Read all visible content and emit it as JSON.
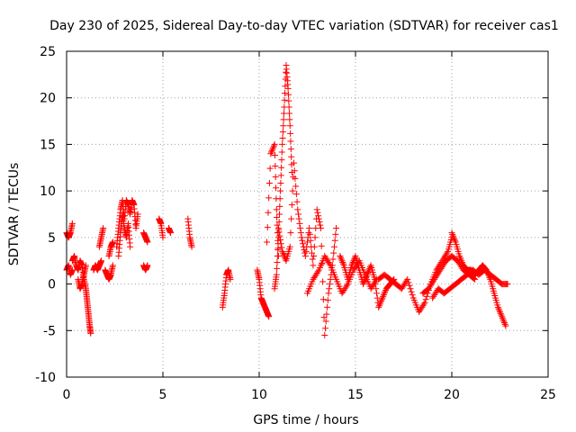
{
  "chart_data": {
    "type": "scatter",
    "title": "Day 230 of 2025, Sidereal Day-to-day VTEC variation (SDTVAR) for receiver cas1",
    "xlabel": "GPS time / hours",
    "ylabel": "SDTVAR / TECUs",
    "xlim": [
      0,
      25
    ],
    "ylim": [
      -10,
      25
    ],
    "x_ticks": [
      0,
      5,
      10,
      15,
      20,
      25
    ],
    "y_ticks": [
      -10,
      -5,
      0,
      5,
      10,
      15,
      20,
      25
    ],
    "grid": true,
    "legend": "none",
    "marker": "+",
    "series": [
      {
        "name": "SDTVAR",
        "color": "#ff0000",
        "segments": [
          {
            "t": [
              0.0,
              0.1,
              0.2,
              0.3
            ],
            "v": [
              5.5,
              5.0,
              5.5,
              6.5
            ]
          },
          {
            "t": [
              0.0,
              0.1,
              0.2,
              0.3
            ],
            "v": [
              1.5,
              2.0,
              1.0,
              1.5
            ]
          },
          {
            "t": [
              0.3,
              0.4,
              0.5,
              0.6,
              0.7,
              0.8,
              0.9,
              1.0,
              1.05,
              1.1,
              1.15,
              1.2,
              1.25
            ],
            "v": [
              2.5,
              3.0,
              2.0,
              1.5,
              2.5,
              2.0,
              0.5,
              -0.5,
              -1.5,
              -2.5,
              -3.5,
              -4.5,
              -5.3
            ]
          },
          {
            "t": [
              0.6,
              0.7,
              0.8,
              0.9,
              1.0
            ],
            "v": [
              0.5,
              -0.5,
              0.0,
              1.0,
              2.0
            ]
          },
          {
            "t": [
              1.4,
              1.5,
              1.6,
              1.7,
              1.8
            ],
            "v": [
              1.5,
              2.0,
              1.5,
              2.0,
              2.5
            ]
          },
          {
            "t": [
              1.7,
              1.8,
              1.9
            ],
            "v": [
              4.0,
              5.0,
              6.0
            ]
          },
          {
            "t": [
              2.0,
              2.1,
              2.2,
              2.3,
              2.4
            ],
            "v": [
              1.5,
              1.0,
              0.5,
              1.0,
              2.0
            ]
          },
          {
            "t": [
              2.2,
              2.3,
              2.4
            ],
            "v": [
              3.0,
              4.0,
              4.5
            ]
          },
          {
            "t": [
              2.6,
              2.7,
              2.8,
              2.9,
              3.0,
              3.1,
              3.2,
              3.3,
              3.4,
              3.5,
              3.6,
              3.7
            ],
            "v": [
              4.0,
              6.0,
              8.0,
              9.0,
              7.0,
              9.0,
              8.5,
              7.5,
              9.0,
              8.5,
              6.0,
              7.5
            ]
          },
          {
            "t": [
              2.7,
              2.8,
              2.9,
              3.0,
              3.1,
              3.2,
              3.3
            ],
            "v": [
              3.0,
              5.5,
              7.5,
              6.0,
              5.0,
              6.5,
              4.0
            ]
          },
          {
            "t": [
              4.0,
              4.1,
              4.2
            ],
            "v": [
              5.5,
              5.0,
              4.5
            ]
          },
          {
            "t": [
              4.0,
              4.1,
              4.2
            ],
            "v": [
              2.0,
              1.5,
              2.0
            ]
          },
          {
            "t": [
              4.8,
              4.9,
              5.0
            ],
            "v": [
              7.0,
              6.5,
              5.0
            ]
          },
          {
            "t": [
              5.3,
              5.4
            ],
            "v": [
              6.0,
              5.5
            ]
          },
          {
            "t": [
              6.3,
              6.4,
              6.5
            ],
            "v": [
              7.0,
              5.0,
              4.0
            ]
          },
          {
            "t": [
              8.1,
              8.2,
              8.3,
              8.4,
              8.5
            ],
            "v": [
              -2.5,
              -1.0,
              1.0,
              1.5,
              0.5
            ]
          },
          {
            "t": [
              9.9,
              10.0,
              10.1,
              10.2,
              10.3,
              10.4,
              10.5
            ],
            "v": [
              1.5,
              0.5,
              -1.5,
              -2.0,
              -2.5,
              -3.0,
              -3.5
            ]
          },
          {
            "t": [
              10.4,
              10.6,
              10.8,
              10.9,
              11.0
            ],
            "v": [
              4.5,
              14.0,
              15.0,
              8.0,
              3.0
            ]
          },
          {
            "t": [
              10.8,
              10.9,
              11.0,
              11.1,
              11.2,
              11.3,
              11.4,
              11.5,
              11.6,
              11.7
            ],
            "v": [
              -0.5,
              1.0,
              5.0,
              10.0,
              15.0,
              19.0,
              23.5,
              21.0,
              17.0,
              12.0
            ]
          },
          {
            "t": [
              11.0,
              11.2,
              11.4,
              11.6,
              11.8,
              12.0,
              12.2,
              12.4,
              12.6,
              12.8,
              13.0,
              13.2,
              13.4,
              13.6,
              13.8,
              14.0
            ],
            "v": [
              6.0,
              3.5,
              2.5,
              4.0,
              13.0,
              8.0,
              5.0,
              3.0,
              6.0,
              2.0,
              8.0,
              6.0,
              -5.5,
              -1.0,
              2.0,
              6.0
            ]
          },
          {
            "t": [
              12.5,
              12.8,
              13.1,
              13.4,
              13.7,
              14.0,
              14.3,
              14.6,
              14.9,
              15.2,
              15.5,
              15.8,
              16.1
            ],
            "v": [
              -1.0,
              0.5,
              1.5,
              3.0,
              2.0,
              0.5,
              -1.0,
              0.0,
              1.5,
              2.5,
              1.0,
              -0.5,
              0.5
            ]
          },
          {
            "t": [
              14.2,
              14.4,
              14.6,
              14.8,
              15.0,
              15.2,
              15.4,
              15.6,
              15.8,
              16.0,
              16.2,
              16.4,
              16.6,
              16.8,
              17.0
            ],
            "v": [
              3.0,
              2.0,
              0.5,
              2.0,
              3.0,
              1.5,
              0.0,
              1.0,
              2.0,
              0.5,
              -2.5,
              -1.5,
              -0.5,
              0.0,
              0.5
            ]
          },
          {
            "t": [
              16.2,
              16.5,
              16.8,
              17.1,
              17.4,
              17.7,
              18.0,
              18.3,
              18.6,
              18.9,
              19.2,
              19.5,
              19.8,
              20.0
            ],
            "v": [
              0.5,
              1.0,
              0.5,
              0.0,
              -0.5,
              0.5,
              -1.5,
              -3.0,
              -2.0,
              0.0,
              1.5,
              2.5,
              3.5,
              5.0
            ]
          },
          {
            "t": [
              18.5,
              18.8,
              19.1,
              19.4,
              19.7,
              20.0,
              20.3,
              20.6,
              20.9,
              21.2
            ],
            "v": [
              -1.0,
              -0.5,
              0.5,
              1.5,
              2.5,
              3.0,
              2.5,
              1.5,
              1.0,
              0.5
            ]
          },
          {
            "t": [
              20.0,
              20.2,
              20.4,
              20.6,
              20.8,
              21.0,
              21.2,
              21.4,
              21.6,
              21.8,
              22.0,
              22.2,
              22.4,
              22.6,
              22.8
            ],
            "v": [
              5.5,
              4.5,
              3.0,
              2.0,
              1.5,
              1.5,
              1.0,
              1.5,
              2.0,
              1.5,
              0.5,
              -1.0,
              -2.5,
              -3.5,
              -4.5
            ]
          },
          {
            "t": [
              19.0,
              19.3,
              19.6,
              19.9,
              20.2,
              20.5,
              20.8,
              21.1,
              21.4,
              21.7,
              22.0,
              22.3,
              22.6,
              22.9
            ],
            "v": [
              -1.5,
              -0.5,
              -1.0,
              -0.5,
              0.0,
              0.5,
              1.0,
              1.5,
              1.0,
              1.5,
              1.0,
              0.5,
              0.0,
              0.0
            ]
          }
        ]
      }
    ]
  }
}
